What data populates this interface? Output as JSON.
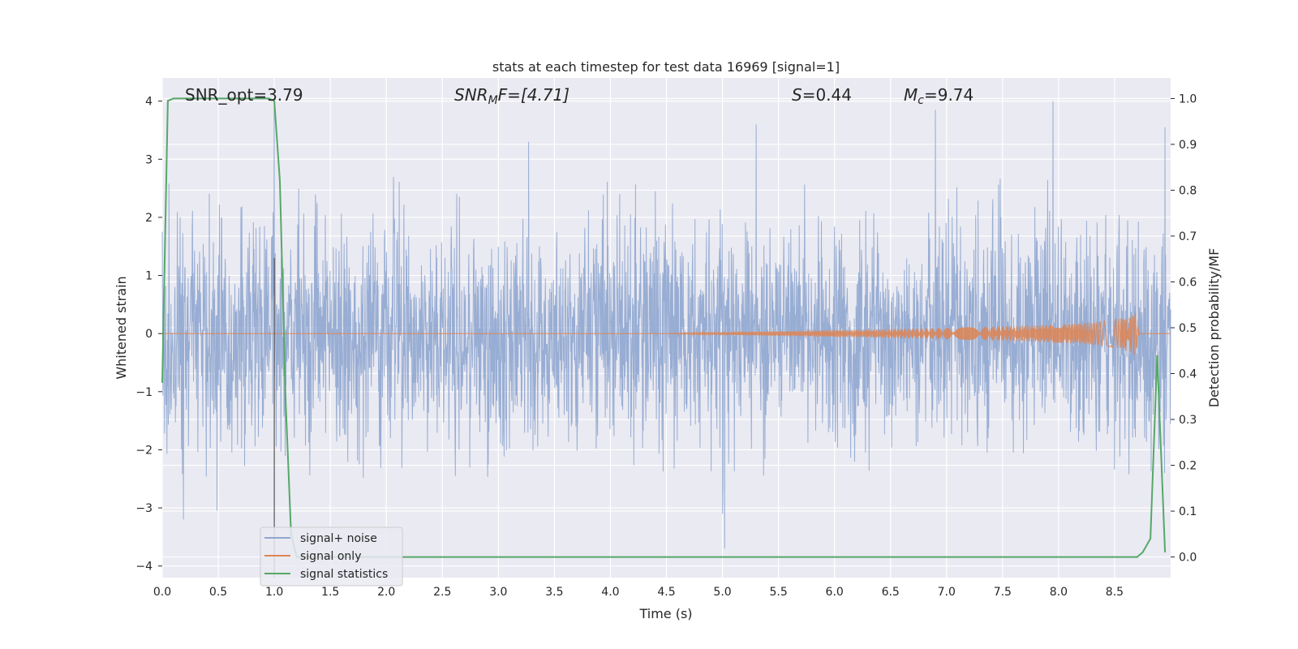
{
  "chart_data": {
    "type": "line",
    "title": "stats at each timestep for test data 16969 [signal=1]",
    "xlabel": "Time (s)",
    "ylabel": "Whitened strain",
    "y2label": "Detection probability/MF",
    "xlim": [
      0.0,
      9.0
    ],
    "ylim": [
      -4.2,
      4.4
    ],
    "y2lim": [
      -0.045,
      1.045
    ],
    "xticks": [
      "0.0",
      "0.5",
      "1.0",
      "1.5",
      "2.0",
      "2.5",
      "3.0",
      "3.5",
      "4.0",
      "4.5",
      "5.0",
      "5.5",
      "6.0",
      "6.5",
      "7.0",
      "7.5",
      "8.0",
      "8.5"
    ],
    "yticks": [
      "4",
      "3",
      "2",
      "1",
      "0",
      "−1",
      "−2",
      "−3",
      "−4"
    ],
    "y2ticks": [
      "1.0",
      "0.9",
      "0.8",
      "0.7",
      "0.6",
      "0.5",
      "0.4",
      "0.3",
      "0.2",
      "0.1",
      "0.0"
    ],
    "grid": true,
    "legend_position": "lower-left",
    "annotations": {
      "snr_opt": "SNR_opt=3.79",
      "snr_mf_main": "SNR",
      "snr_mf_sub": "M",
      "snr_mf_rest": "F=[4.71]",
      "s_var": "S",
      "s_rest": "=0.44",
      "mc_var": "M",
      "mc_sub": "c",
      "mc_rest": "=9.74"
    },
    "marker_line_x": 1.0,
    "series": [
      {
        "name": "signal+ noise",
        "color": "#8fa6cf",
        "description_of_envelope": {
          "x_range": [
            0.0,
            9.0
          ],
          "dense_band": [
            -1.4,
            1.4
          ],
          "typical_extremes": [
            -2.6,
            2.7
          ],
          "peaks": [
            {
              "x": 0.19,
              "y": -3.2
            },
            {
              "x": 0.49,
              "y": -3.05
            },
            {
              "x": 1.0,
              "y": 4.0
            },
            {
              "x": 3.27,
              "y": 3.3
            },
            {
              "x": 5.0,
              "y": -3.1
            },
            {
              "x": 5.02,
              "y": -3.7
            },
            {
              "x": 5.3,
              "y": 3.6
            },
            {
              "x": 6.9,
              "y": 3.85
            },
            {
              "x": 7.95,
              "y": 4.0
            },
            {
              "x": 8.95,
              "y": 3.55
            }
          ]
        }
      },
      {
        "name": "signal only",
        "color": "#dd8452",
        "chirp": {
          "start": 4.5,
          "peak_time": 8.68,
          "peak_amplitude": 0.45,
          "end": 8.72
        }
      },
      {
        "name": "signal statistics",
        "color": "#55a868",
        "axis": "right",
        "x": [
          0.0,
          0.05,
          0.1,
          0.2,
          0.5,
          0.95,
          1.0,
          1.05,
          1.1,
          1.15,
          1.2,
          1.3,
          2.0,
          4.0,
          6.0,
          8.0,
          8.7,
          8.75,
          8.82,
          8.88,
          8.95
        ],
        "y": [
          0.38,
          0.995,
          1.0,
          1.0,
          1.0,
          1.0,
          0.995,
          0.82,
          0.35,
          0.05,
          0.0,
          0.0,
          0.0,
          0.0,
          0.0,
          0.0,
          0.0,
          0.01,
          0.04,
          0.44,
          0.01
        ]
      }
    ]
  },
  "colors": {
    "background": "#eaeaf2",
    "grid": "#ffffff",
    "noise": "#8fa6cf",
    "signal": "#dd8452",
    "stat": "#55a868",
    "marker_line": "#555555"
  }
}
